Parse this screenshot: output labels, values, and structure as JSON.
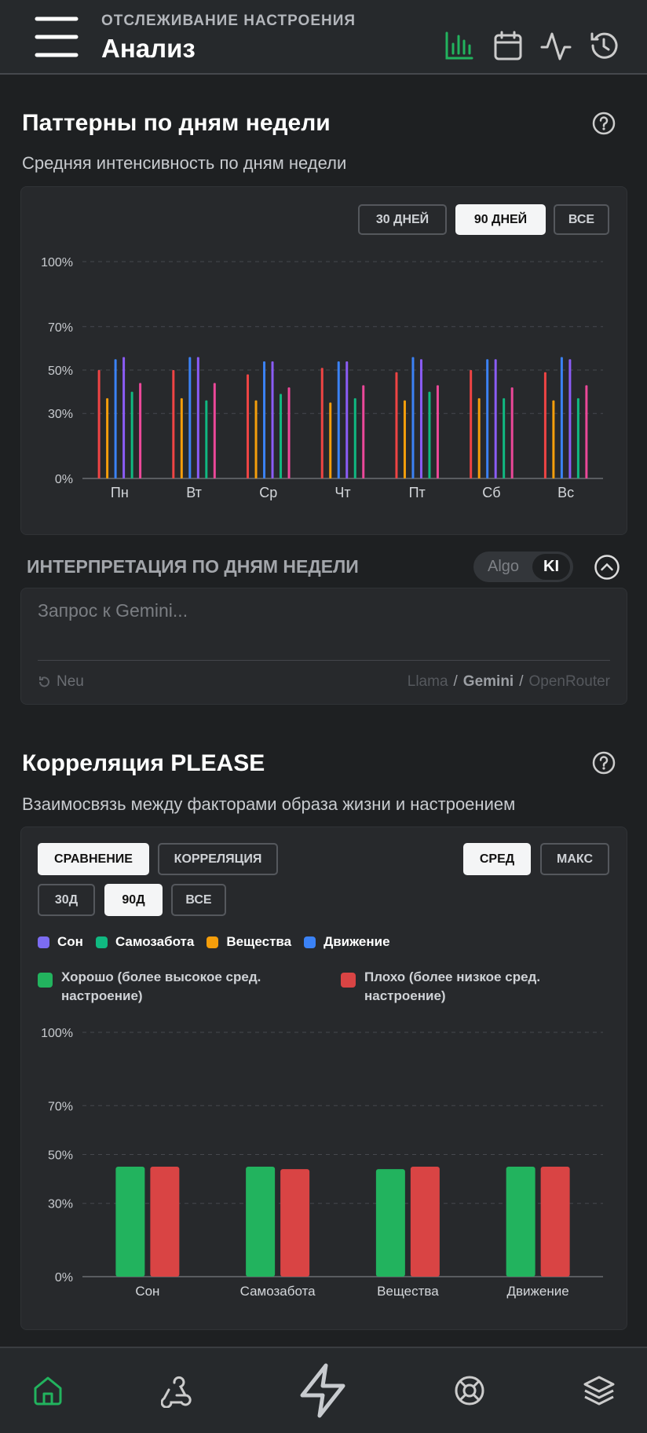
{
  "header": {
    "subtitle": "ОТСЛЕЖИВАНИЕ НАСТРОЕНИЯ",
    "title": "Анализ"
  },
  "weekday_section": {
    "title": "Паттерны по дням недели",
    "subtitle": "Средняя интенсивность по дням недели",
    "range_buttons": [
      "30 ДНЕЙ",
      "90 ДНЕЙ",
      "ВСЕ"
    ]
  },
  "interpretation": {
    "title": "ИНТЕРПРЕТАЦИЯ ПО ДНЯМ НЕДЕЛИ",
    "modes": [
      "Algo",
      "KI"
    ],
    "placeholder": "Запрос к Gemini...",
    "reset": "Neu",
    "providers": [
      "Llama",
      "Gemini",
      "OpenRouter"
    ],
    "separator": "/"
  },
  "correlation_section": {
    "title": "Корреляция PLEASE",
    "subtitle": "Взаимосвязь между факторами образа жизни и настроением",
    "view_buttons": [
      "СРАВНЕНИЕ",
      "КОРРЕЛЯЦИЯ"
    ],
    "stat_buttons": [
      "СРЕД",
      "МАКС"
    ],
    "range_buttons": [
      "30Д",
      "90Д",
      "ВСЕ"
    ],
    "factor_legend": [
      {
        "name": "Сон",
        "color": "#7c6cf2"
      },
      {
        "name": "Самозабота",
        "color": "#10b981"
      },
      {
        "name": "Вещества",
        "color": "#f59e0b"
      },
      {
        "name": "Движение",
        "color": "#3b82f6"
      }
    ]
  },
  "chart_data": [
    {
      "type": "bar",
      "categories": [
        "Пн",
        "Вт",
        "Ср",
        "Чт",
        "Пт",
        "Сб",
        "Вс"
      ],
      "series": [
        {
          "color": "#ef4444",
          "values": [
            50,
            50,
            48,
            51,
            49,
            50,
            49
          ]
        },
        {
          "color": "#f59e0b",
          "values": [
            37,
            37,
            36,
            35,
            36,
            37,
            36
          ]
        },
        {
          "color": "#3b82f6",
          "values": [
            55,
            56,
            54,
            54,
            56,
            55,
            56
          ]
        },
        {
          "color": "#8b5cf6",
          "values": [
            56,
            56,
            54,
            54,
            55,
            55,
            55
          ]
        },
        {
          "color": "#10b981",
          "values": [
            40,
            36,
            39,
            37,
            40,
            37,
            37
          ]
        },
        {
          "color": "#ec4899",
          "values": [
            44,
            44,
            42,
            43,
            43,
            42,
            43
          ]
        }
      ],
      "ylim": [
        0,
        100
      ],
      "yticks": [
        {
          "value": 0,
          "label": "0%"
        },
        {
          "value": 30,
          "label": "30%"
        },
        {
          "value": 50,
          "label": "50%"
        },
        {
          "value": 70,
          "label": "70%"
        },
        {
          "value": 100,
          "label": "100%"
        }
      ],
      "grid": true
    },
    {
      "type": "bar",
      "categories": [
        "Сон",
        "Самозабота",
        "Вещества",
        "Движение"
      ],
      "series": [
        {
          "name": "Хорошо (более высокое сред. настроение)",
          "color": "#22b35e",
          "values": [
            45,
            45,
            44,
            45
          ]
        },
        {
          "name": "Плохо (более низкое сред. настроение)",
          "color": "#d94444",
          "values": [
            45,
            44,
            45,
            45
          ]
        }
      ],
      "ylim": [
        0,
        100
      ],
      "yticks": [
        {
          "value": 0,
          "label": "0%"
        },
        {
          "value": 30,
          "label": "30%"
        },
        {
          "value": 50,
          "label": "50%"
        },
        {
          "value": 70,
          "label": "70%"
        },
        {
          "value": 100,
          "label": "100%"
        }
      ],
      "grid": true,
      "legend": "top"
    }
  ]
}
